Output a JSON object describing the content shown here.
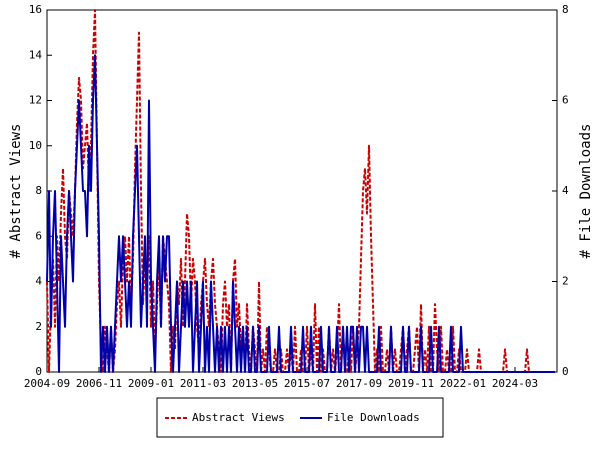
{
  "chart_data": {
    "type": "line",
    "y_label": "# Abstract Views",
    "y2_label": "# File Downloads",
    "categories": [
      "2004-09",
      "2004-10",
      "2004-11",
      "2004-12",
      "2005-01",
      "2005-02",
      "2005-03",
      "2005-04",
      "2005-05",
      "2005-06",
      "2005-07",
      "2005-08",
      "2005-09",
      "2005-10",
      "2005-11",
      "2005-12",
      "2006-01",
      "2006-02",
      "2006-03",
      "2006-04",
      "2006-05",
      "2006-06",
      "2006-07",
      "2006-08",
      "2006-09",
      "2006-10",
      "2006-11",
      "2006-12",
      "2007-01",
      "2007-02",
      "2007-03",
      "2007-04",
      "2007-05",
      "2007-06",
      "2007-07",
      "2007-08",
      "2007-09",
      "2007-10",
      "2007-11",
      "2007-12",
      "2008-01",
      "2008-02",
      "2008-03",
      "2008-04",
      "2008-05",
      "2008-06",
      "2008-07",
      "2008-08",
      "2008-09",
      "2008-10",
      "2008-11",
      "2008-12",
      "2009-01",
      "2009-02",
      "2009-03",
      "2009-04",
      "2009-05",
      "2009-06",
      "2009-07",
      "2009-08",
      "2009-09",
      "2009-10",
      "2009-11",
      "2009-12",
      "2010-01",
      "2010-02",
      "2010-03",
      "2010-04",
      "2010-05",
      "2010-06",
      "2010-07",
      "2010-08",
      "2010-09",
      "2010-10",
      "2010-11",
      "2010-12",
      "2011-01",
      "2011-02",
      "2011-03",
      "2011-04",
      "2011-05",
      "2011-06",
      "2011-07",
      "2011-08",
      "2011-09",
      "2011-10",
      "2011-11",
      "2011-12",
      "2012-01",
      "2012-02",
      "2012-03",
      "2012-04",
      "2012-05",
      "2012-06",
      "2012-07",
      "2012-08",
      "2012-09",
      "2012-10",
      "2012-11",
      "2012-12",
      "2013-01",
      "2013-02",
      "2013-03",
      "2013-04",
      "2013-05",
      "2013-06",
      "2013-07",
      "2013-08",
      "2013-09",
      "2013-10",
      "2013-11",
      "2013-12",
      "2014-01",
      "2014-02",
      "2014-03",
      "2014-04",
      "2014-05",
      "2014-06",
      "2014-07",
      "2014-08",
      "2014-09",
      "2014-10",
      "2014-11",
      "2014-12",
      "2015-01",
      "2015-02",
      "2015-03",
      "2015-04",
      "2015-05",
      "2015-06",
      "2015-07",
      "2015-08",
      "2015-09",
      "2015-10",
      "2015-11",
      "2015-12",
      "2016-01",
      "2016-02",
      "2016-03",
      "2016-04",
      "2016-05",
      "2016-06",
      "2016-07",
      "2016-08",
      "2016-09",
      "2016-10",
      "2016-11",
      "2016-12",
      "2017-01",
      "2017-02",
      "2017-03",
      "2017-04",
      "2017-05",
      "2017-06",
      "2017-07",
      "2017-08",
      "2017-09",
      "2017-10",
      "2017-11",
      "2017-12",
      "2018-01",
      "2018-02",
      "2018-03",
      "2018-04",
      "2018-05",
      "2018-06",
      "2018-07",
      "2018-08",
      "2018-09",
      "2018-10",
      "2018-11",
      "2018-12",
      "2019-01",
      "2019-02",
      "2019-03",
      "2019-04",
      "2019-05",
      "2019-06",
      "2019-07",
      "2019-08",
      "2019-09",
      "2019-10",
      "2019-11",
      "2019-12",
      "2020-01",
      "2020-02",
      "2020-03",
      "2020-04",
      "2020-05",
      "2020-06",
      "2020-07",
      "2020-08",
      "2020-09",
      "2020-10",
      "2020-11",
      "2020-12",
      "2021-01",
      "2021-02",
      "2021-03",
      "2021-04",
      "2021-05",
      "2021-06",
      "2021-07",
      "2021-08",
      "2021-09",
      "2021-10",
      "2021-11",
      "2021-12",
      "2022-01",
      "2022-02",
      "2022-03",
      "2022-04",
      "2022-05",
      "2022-06",
      "2022-07",
      "2022-08",
      "2022-09",
      "2022-10",
      "2022-11",
      "2022-12",
      "2023-01",
      "2023-02",
      "2023-03",
      "2023-04",
      "2023-05",
      "2023-06",
      "2023-07",
      "2023-08",
      "2023-09",
      "2023-10",
      "2023-11",
      "2023-12",
      "2024-01",
      "2024-02",
      "2024-03",
      "2024-04",
      "2024-05",
      "2024-06",
      "2024-07",
      "2024-08",
      "2024-09",
      "2024-10",
      "2024-11",
      "2024-12",
      "2025-01",
      "2025-02",
      "2025-03",
      "2025-04",
      "2025-05",
      "2025-06",
      "2025-07",
      "2025-08",
      "2025-09",
      "2025-10",
      "2025-11"
    ],
    "xticks": [
      "2004-09",
      "2006-11",
      "2009-01",
      "2011-03",
      "2013-05",
      "2015-07",
      "2017-09",
      "2019-11",
      "2022-01",
      "2024-03"
    ],
    "series": [
      {
        "name": "Abstract Views",
        "color": "#cc0000",
        "dash": true,
        "values": [
          4,
          0,
          3,
          5,
          2,
          6,
          4,
          7,
          9,
          6,
          5,
          8,
          7,
          6,
          8,
          11,
          13,
          12,
          9,
          10,
          11,
          8,
          10,
          14,
          16,
          10,
          4,
          1,
          0,
          2,
          1,
          0,
          2,
          0,
          1,
          3,
          4,
          2,
          5,
          6,
          4,
          6,
          3,
          5,
          9,
          12,
          15,
          8,
          3,
          5,
          4,
          6,
          2,
          4,
          1,
          3,
          5,
          2,
          6,
          5,
          4,
          3,
          0,
          2,
          1,
          4,
          3,
          5,
          2,
          4,
          7,
          6,
          3,
          5,
          4,
          2,
          1,
          3,
          4,
          5,
          3,
          2,
          4,
          5,
          3,
          2,
          1,
          0,
          3,
          4,
          2,
          3,
          0,
          4,
          5,
          2,
          3,
          1,
          2,
          0,
          3,
          1,
          0,
          2,
          1,
          0,
          4,
          0,
          1,
          0,
          2,
          1,
          0,
          0,
          1,
          0,
          0,
          1,
          0,
          0,
          1,
          0,
          1,
          0,
          2,
          0,
          0,
          1,
          0,
          0,
          2,
          0,
          1,
          0,
          3,
          0,
          2,
          0,
          1,
          0,
          0,
          2,
          0,
          1,
          0,
          1,
          3,
          0,
          2,
          0,
          0,
          1,
          0,
          2,
          0,
          1,
          2,
          5,
          8,
          9,
          7,
          10,
          6,
          3,
          0,
          1,
          0,
          2,
          0,
          0,
          1,
          0,
          2,
          0,
          1,
          0,
          0,
          1,
          2,
          0,
          1,
          2,
          0,
          0,
          1,
          2,
          0,
          3,
          0,
          1,
          0,
          2,
          0,
          0,
          3,
          1,
          0,
          2,
          0,
          0,
          1,
          0,
          0,
          2,
          0,
          0,
          1,
          0,
          0,
          0,
          1,
          0,
          0,
          0,
          0,
          0,
          1,
          0,
          0,
          0,
          0,
          0,
          0,
          0,
          0,
          0,
          0,
          0,
          0,
          1,
          0,
          0,
          0,
          0,
          0,
          0,
          0,
          0,
          0,
          0,
          1,
          0,
          0,
          0,
          0,
          0,
          0,
          0,
          0,
          0,
          0,
          0,
          0,
          0,
          0
        ]
      },
      {
        "name": "File Downloads",
        "color": "#0000aa",
        "axis": "y2",
        "values": [
          2,
          4,
          1,
          3,
          4,
          2,
          0,
          3,
          2,
          1,
          3,
          4,
          3,
          2,
          4,
          5,
          6,
          5,
          4,
          4,
          3,
          5,
          4,
          6,
          7,
          5,
          3,
          0,
          1,
          0,
          1,
          0,
          1,
          0,
          1,
          2,
          3,
          2,
          3,
          2,
          1,
          2,
          1,
          3,
          4,
          5,
          3,
          1,
          2,
          3,
          1,
          6,
          2,
          1,
          0,
          2,
          3,
          1,
          3,
          2,
          3,
          3,
          1,
          0,
          1,
          2,
          0,
          1,
          2,
          1,
          2,
          1,
          2,
          0,
          1,
          2,
          0,
          1,
          2,
          0,
          1,
          0,
          2,
          1,
          0,
          1,
          0,
          1,
          0,
          1,
          0,
          1,
          0,
          2,
          1,
          0,
          1,
          0,
          1,
          0,
          1,
          0,
          0,
          1,
          0,
          0,
          1,
          0,
          0,
          0,
          0,
          1,
          0,
          0,
          0,
          0,
          1,
          0,
          0,
          0,
          0,
          0,
          1,
          0,
          0,
          0,
          0,
          0,
          1,
          0,
          0,
          0,
          1,
          0,
          0,
          0,
          0,
          1,
          0,
          0,
          0,
          1,
          0,
          0,
          0,
          1,
          0,
          0,
          1,
          0,
          1,
          0,
          1,
          1,
          0,
          1,
          0,
          1,
          1,
          0,
          1,
          0,
          0,
          0,
          0,
          0,
          1,
          0,
          0,
          0,
          0,
          0,
          1,
          0,
          0,
          0,
          0,
          0,
          1,
          0,
          0,
          1,
          0,
          0,
          0,
          0,
          0,
          1,
          0,
          0,
          0,
          0,
          1,
          0,
          0,
          0,
          1,
          0,
          0,
          0,
          0,
          0,
          1,
          0,
          0,
          0,
          0,
          1,
          0,
          0,
          0,
          0,
          0,
          0,
          0,
          0,
          0,
          0,
          0,
          0,
          0,
          0,
          0,
          0,
          0,
          0,
          0,
          0,
          0,
          0,
          0,
          0,
          0,
          0,
          0,
          0,
          0,
          0,
          0,
          0,
          0,
          0,
          0,
          0,
          0,
          0,
          0,
          0,
          0,
          0,
          0,
          0,
          0,
          0,
          0
        ]
      }
    ],
    "ylim": [
      0,
      16
    ],
    "yticks": [
      0,
      2,
      4,
      6,
      8,
      10,
      12,
      14,
      16
    ],
    "y2lim": [
      0,
      8
    ],
    "y2ticks": [
      0,
      2,
      4,
      6,
      8
    ],
    "grid": false
  }
}
